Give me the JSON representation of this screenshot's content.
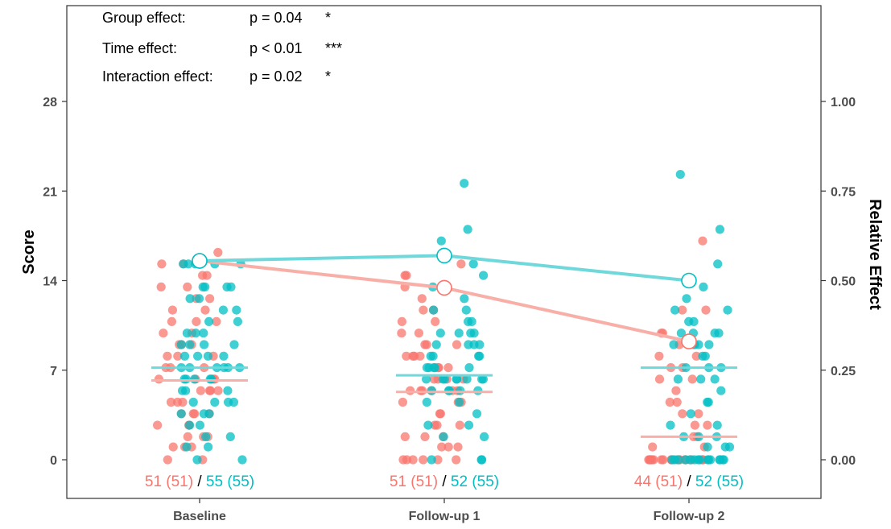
{
  "chart_data": {
    "type": "scatter",
    "categories": [
      "Baseline",
      "Follow-up 1",
      "Follow-up 2"
    ],
    "ylabel": "Score",
    "y2label": "Relative Effect",
    "ylim": [
      -3,
      35
    ],
    "yticks": [
      0,
      7,
      14,
      21,
      28
    ],
    "y2ticks": [
      "0.00",
      "0.25",
      "0.50",
      "0.75",
      "1.00"
    ],
    "grid": false,
    "colors": {
      "group1": "#F8766D",
      "group2": "#00BFC4",
      "group1_line": "#F8AFA8",
      "group2_line": "#6FD8DB"
    },
    "annotations": [
      {
        "label": "Group effect:",
        "value": "p = 0.04",
        "stars": "*"
      },
      {
        "label": "Time effect:",
        "value": "p < 0.01",
        "stars": "***"
      },
      {
        "label": "Interaction effect:",
        "value": "p = 0.02",
        "stars": "*"
      }
    ],
    "series": [
      {
        "relative_effect": [
          0.555,
          0.48,
          0.33
        ],
        "median": [
          6.2,
          5.3,
          1.8
        ],
        "counts": [
          "51 (51)",
          "51 (51)",
          "44 (51)"
        ],
        "points": [
          [
            0,
            0,
            1,
            1,
            1,
            1.8,
            1.8,
            1.8,
            2.7,
            2.7,
            2.7,
            3.6,
            3.6,
            3.6,
            3.6,
            4.5,
            4.5,
            4.5,
            5.4,
            5.4,
            5.4,
            5.4,
            6.3,
            6.3,
            6.3,
            7.2,
            7.2,
            7.2,
            8.1,
            8.1,
            8.1,
            9,
            9,
            9,
            9.9,
            9.9,
            10.8,
            10.8,
            10.8,
            11.7,
            11.7,
            12.6,
            12.6,
            13.5,
            13.5,
            14.4,
            14.4,
            15.3,
            15.3,
            16.2,
            6.3
          ],
          [
            0,
            0,
            0,
            0,
            0,
            1,
            1,
            1,
            1.8,
            1.8,
            2.7,
            2.7,
            2.7,
            3.6,
            3.6,
            4.5,
            4.5,
            4.5,
            5.4,
            5.4,
            5.4,
            5.4,
            6.3,
            6.3,
            6.3,
            7.2,
            7.2,
            7.2,
            8.1,
            8.1,
            8.1,
            9,
            9,
            9,
            9.9,
            9.9,
            10.8,
            10.8,
            11.7,
            11.7,
            12.6,
            14.4,
            14.4,
            15.3,
            13.5,
            8.1,
            6.3,
            5.4,
            5.4,
            0,
            1.8
          ],
          [
            0,
            0,
            0,
            0,
            0,
            0,
            0,
            0,
            0,
            0,
            0,
            0,
            0,
            0,
            0,
            0,
            0,
            0,
            1,
            1,
            1.8,
            1.8,
            2.7,
            2.7,
            3.6,
            3.6,
            4.5,
            4.5,
            5.4,
            6.3,
            6.3,
            7.2,
            7.2,
            8.1,
            8.1,
            9,
            9,
            9.9,
            9.9,
            11.7,
            11.7,
            17.1,
            0,
            0
          ]
        ]
      },
      {
        "relative_effect": [
          0.555,
          0.57,
          0.5
        ],
        "median": [
          7.2,
          6.6,
          7.2
        ],
        "counts": [
          "55 (55)",
          "52 (55)",
          "52 (55)"
        ],
        "points": [
          [
            0,
            0,
            1,
            1,
            1.8,
            1.8,
            2.7,
            2.7,
            3.6,
            3.6,
            3.6,
            4.5,
            4.5,
            4.5,
            4.5,
            5.4,
            5.4,
            5.4,
            6.3,
            6.3,
            6.3,
            6.3,
            7.2,
            7.2,
            7.2,
            7.2,
            7.2,
            8.1,
            8.1,
            8.1,
            8.1,
            9,
            9,
            9,
            9,
            9.9,
            9.9,
            9.9,
            10.8,
            10.8,
            11.7,
            11.7,
            12.6,
            12.6,
            13.5,
            13.5,
            13.5,
            13.5,
            15.3,
            15.3,
            15.3,
            15.3,
            15.3,
            6.3,
            7.2
          ],
          [
            0,
            0,
            1.8,
            1.8,
            2.7,
            2.7,
            3.6,
            4.5,
            4.5,
            5.4,
            5.4,
            5.4,
            5.4,
            6.3,
            6.3,
            6.3,
            6.3,
            6.3,
            6.3,
            7.2,
            7.2,
            7.2,
            7.2,
            8.1,
            8.1,
            8.1,
            9,
            9,
            9,
            9,
            9.9,
            9.9,
            9.9,
            9.9,
            10.8,
            10.8,
            11.7,
            11.7,
            12.6,
            13.5,
            14.4,
            15.3,
            16.2,
            17.1,
            18,
            21.6,
            6.3,
            5.4,
            7.2,
            8.1,
            6.3,
            0
          ],
          [
            0,
            0,
            0,
            0,
            0,
            0,
            0,
            0,
            0,
            0,
            0,
            0,
            0,
            0,
            1,
            1,
            1,
            1.8,
            1.8,
            2.7,
            3.6,
            4.5,
            4.5,
            5.4,
            6.3,
            6.3,
            7.2,
            7.2,
            8.1,
            8.1,
            9,
            9,
            9,
            9.9,
            9.9,
            9.9,
            10.8,
            10.8,
            11.7,
            11.7,
            12.6,
            13.5,
            15.3,
            18,
            22.3,
            0,
            1.8,
            2.7,
            9.9,
            9,
            7.2,
            6.3
          ]
        ]
      }
    ]
  }
}
